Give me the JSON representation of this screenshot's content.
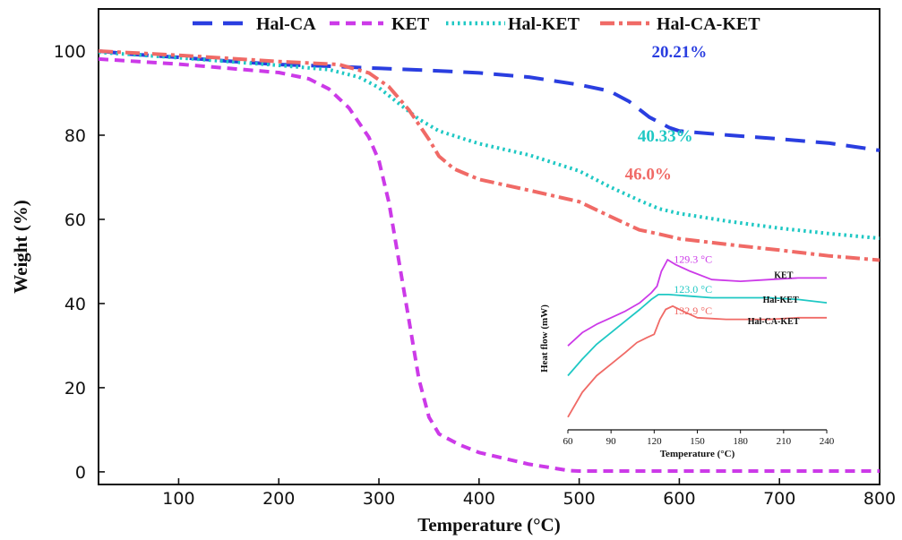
{
  "chart_data": [
    {
      "type": "line",
      "xlabel": "Temperature (°C)",
      "ylabel": "Weight (%)",
      "xlim": [
        20,
        800
      ],
      "ylim": [
        -3,
        110
      ],
      "xticks": [
        100,
        200,
        300,
        400,
        500,
        600,
        700,
        800
      ],
      "yticks": [
        0,
        20,
        40,
        60,
        80,
        100
      ],
      "grid": false,
      "legend_position": "top",
      "series": [
        {
          "name": "Hal-CA",
          "color": "#2a3ee0",
          "style": "long-dash",
          "x": [
            20,
            50,
            100,
            150,
            200,
            250,
            300,
            350,
            400,
            450,
            500,
            530,
            550,
            570,
            590,
            600,
            650,
            700,
            750,
            800
          ],
          "y": [
            100,
            99.3,
            98.5,
            97.6,
            96.8,
            96.4,
            95.9,
            95.4,
            94.8,
            93.8,
            92.0,
            90.5,
            88.0,
            84.3,
            81.8,
            81.0,
            80.0,
            79.1,
            78.1,
            76.4
          ]
        },
        {
          "name": "KET",
          "color": "#cc3ae8",
          "style": "short-dash",
          "x": [
            20,
            100,
            150,
            200,
            230,
            250,
            270,
            290,
            300,
            310,
            320,
            330,
            340,
            350,
            360,
            380,
            400,
            450,
            490,
            500,
            600,
            700,
            800
          ],
          "y": [
            98.1,
            96.9,
            95.9,
            94.9,
            93.4,
            91.0,
            86.5,
            79.5,
            74.0,
            64.0,
            50.0,
            36.0,
            22.0,
            13.0,
            9.0,
            6.5,
            4.6,
            1.8,
            0.3,
            0.2,
            0.2,
            0.2,
            0.2
          ]
        },
        {
          "name": "Hal-KET",
          "color": "#1fc8c4",
          "style": "dotted",
          "x": [
            20,
            100,
            200,
            250,
            280,
            300,
            320,
            340,
            360,
            400,
            450,
            500,
            530,
            560,
            580,
            600,
            650,
            700,
            750,
            800
          ],
          "y": [
            99.7,
            98.4,
            96.6,
            95.6,
            93.8,
            91.3,
            87.5,
            83.8,
            81.0,
            78.0,
            75.3,
            71.5,
            67.8,
            64.5,
            62.5,
            61.4,
            59.5,
            57.9,
            56.6,
            55.5
          ]
        },
        {
          "name": "Hal-CA-KET",
          "color": "#f06a66",
          "style": "dash-dot",
          "x": [
            20,
            100,
            200,
            260,
            290,
            310,
            330,
            350,
            360,
            375,
            400,
            450,
            500,
            530,
            560,
            580,
            600,
            650,
            700,
            750,
            800
          ],
          "y": [
            100,
            99.0,
            97.5,
            96.8,
            94.8,
            91.5,
            86.0,
            79.0,
            75.0,
            72.0,
            69.5,
            66.9,
            64.2,
            60.8,
            57.5,
            56.5,
            55.4,
            54.0,
            52.7,
            51.3,
            50.3
          ]
        }
      ],
      "annotations": [
        {
          "text": "20.21%",
          "x": 600,
          "y": 98.5,
          "color": "#2a3ee0"
        },
        {
          "text": "40.33%",
          "x": 586,
          "y": 78.5,
          "color": "#1fc8c4"
        },
        {
          "text": "46.0%",
          "x": 569,
          "y": 69.5,
          "color": "#f06a66"
        }
      ]
    },
    {
      "type": "line",
      "xlabel": "Temperature (°C)",
      "ylabel": "Heat flow (mW)",
      "xlim": [
        60,
        240
      ],
      "xticks": [
        60,
        90,
        120,
        150,
        180,
        210,
        240
      ],
      "ylim": [
        0,
        100
      ],
      "yticks_shown": false,
      "series": [
        {
          "name": "KET",
          "color": "#cc3ae8",
          "x": [
            60,
            70,
            80,
            90,
            100,
            110,
            118,
            122,
            125,
            129.3,
            135,
            145,
            160,
            180,
            200,
            220,
            240
          ],
          "y": [
            48,
            56,
            61,
            65,
            69,
            74,
            80,
            84,
            93,
            100,
            97,
            93,
            88,
            87,
            88,
            89,
            89
          ]
        },
        {
          "name": "Hal-KET",
          "color": "#1fc8c4",
          "x": [
            60,
            70,
            80,
            90,
            100,
            110,
            118,
            123,
            130,
            145,
            160,
            180,
            200,
            220,
            240
          ],
          "y": [
            30,
            40,
            49,
            56,
            63,
            70,
            76,
            79,
            79,
            78,
            77,
            77,
            77,
            76,
            74
          ]
        },
        {
          "name": "Hal-CA-KET",
          "color": "#f06a66",
          "x": [
            60,
            70,
            80,
            90,
            100,
            108,
            115,
            120,
            124,
            128,
            132.9,
            140,
            150,
            170,
            200,
            220,
            240
          ],
          "y": [
            5,
            20,
            30,
            37,
            44,
            50,
            53,
            55,
            64,
            70,
            72,
            69,
            65,
            64,
            64,
            65,
            65
          ]
        }
      ],
      "annotations": [
        {
          "text": "129.3 °C",
          "x": 147,
          "y": 98,
          "color": "#cc3ae8"
        },
        {
          "text": "123.0 °C",
          "x": 147,
          "y": 80,
          "color": "#1fc8c4"
        },
        {
          "text": "132.9 °C",
          "x": 147,
          "y": 67,
          "color": "#f06a66"
        }
      ],
      "curve_labels": [
        {
          "text": "KET",
          "x": 210,
          "y": 89
        },
        {
          "text": "Hal-KET",
          "x": 208,
          "y": 74
        },
        {
          "text": "Hal-CA-KET",
          "x": 203,
          "y": 61
        }
      ]
    }
  ]
}
